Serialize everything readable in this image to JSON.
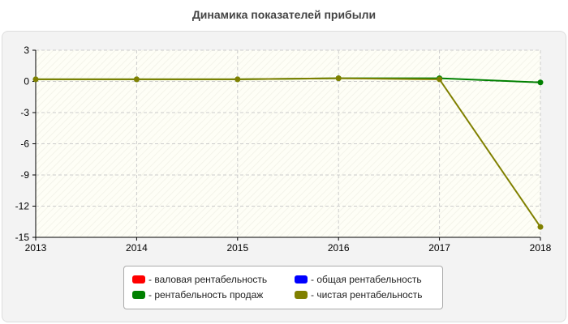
{
  "chart_data": {
    "type": "line",
    "title": "Динамика показателей прибыли",
    "xlabel": "",
    "ylabel": "",
    "x": [
      "2013",
      "2014",
      "2015",
      "2016",
      "2017",
      "2018"
    ],
    "ylim": [
      -15,
      3
    ],
    "yticks": [
      "3",
      "0",
      "-3",
      "-6",
      "-9",
      "-12",
      "-15"
    ],
    "grid": true,
    "legend_position": "bottom-center",
    "series": [
      {
        "name": "- валовая рентабельность",
        "color": "#ff0000",
        "values": [
          null,
          null,
          null,
          null,
          null,
          null
        ]
      },
      {
        "name": "- общая рентабельность",
        "color": "#0000ff",
        "values": [
          null,
          null,
          null,
          null,
          null,
          null
        ]
      },
      {
        "name": "- рентабельность продаж",
        "color": "#008000",
        "values": [
          0.2,
          0.2,
          0.2,
          0.3,
          0.3,
          -0.1
        ]
      },
      {
        "name": "- чистая рентабельность",
        "color": "#808000",
        "values": [
          0.2,
          0.2,
          0.2,
          0.3,
          0.2,
          -14.0
        ]
      }
    ]
  }
}
